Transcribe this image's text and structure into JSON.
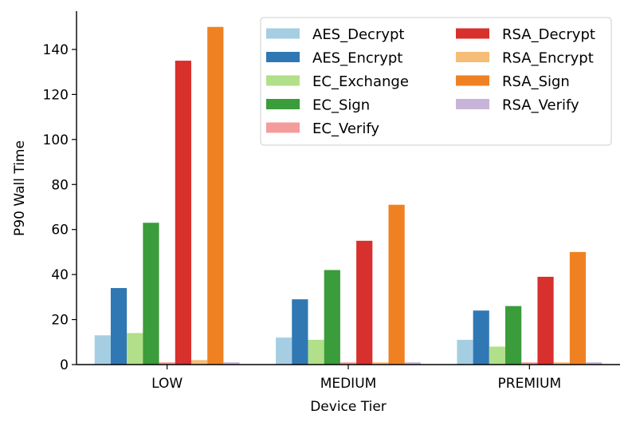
{
  "chart_data": {
    "type": "bar",
    "xlabel": "Device Tier",
    "ylabel": "P90 Wall Time",
    "categories": [
      "LOW",
      "MEDIUM",
      "PREMIUM"
    ],
    "ylim": [
      0,
      157
    ],
    "yticks": [
      0,
      20,
      40,
      60,
      80,
      100,
      120,
      140
    ],
    "grid": false,
    "legend_position": "top-right",
    "series": [
      {
        "name": "AES_Decrypt",
        "color": "#a6cee3",
        "values": [
          13,
          12,
          11
        ]
      },
      {
        "name": "AES_Encrypt",
        "color": "#2f78b4",
        "values": [
          34,
          29,
          24
        ]
      },
      {
        "name": "EC_Exchange",
        "color": "#b2df8a",
        "values": [
          14,
          11,
          8
        ]
      },
      {
        "name": "EC_Sign",
        "color": "#3a9c3a",
        "values": [
          63,
          42,
          26
        ]
      },
      {
        "name": "EC_Verify",
        "color": "#f49c9b",
        "values": [
          1,
          1,
          1
        ]
      },
      {
        "name": "RSA_Decrypt",
        "color": "#d7302d",
        "values": [
          135,
          55,
          39
        ]
      },
      {
        "name": "RSA_Encrypt",
        "color": "#f5bd78",
        "values": [
          2,
          1,
          1
        ]
      },
      {
        "name": "RSA_Sign",
        "color": "#ef8122",
        "values": [
          150,
          71,
          50
        ]
      },
      {
        "name": "RSA_Verify",
        "color": "#c8b4d8",
        "values": [
          1,
          1,
          1
        ]
      }
    ]
  }
}
